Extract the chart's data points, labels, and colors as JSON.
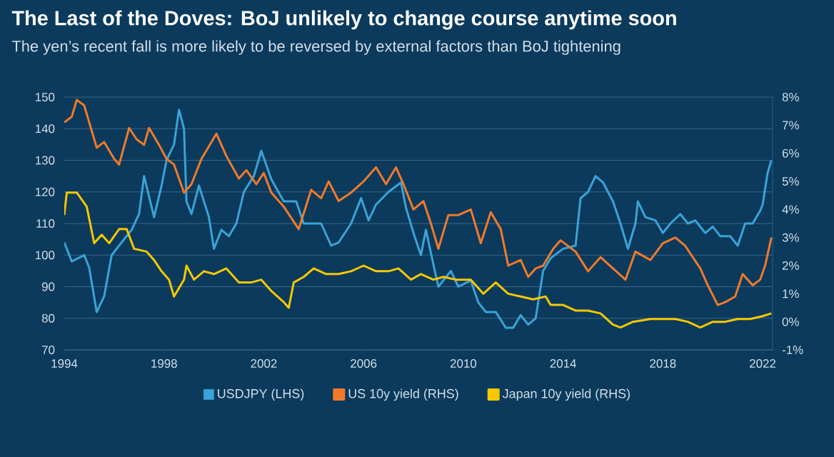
{
  "chart_data": {
    "type": "line",
    "title": "The Last of the Doves: BoJ unlikely to change course anytime soon",
    "subtitle": "The yen’s recent fall is more likely to be reversed by external factors than BoJ tightening",
    "xlim": [
      1994,
      2022.4
    ],
    "xticks": [
      1994,
      1998,
      2002,
      2006,
      2010,
      2014,
      2018,
      2022
    ],
    "ylim": [
      70,
      150
    ],
    "yticks": [
      70,
      80,
      90,
      100,
      110,
      120,
      130,
      140,
      150
    ],
    "y2lim": [
      -1,
      8
    ],
    "y2ticks": [
      {
        "value": -1,
        "label": "-1%"
      },
      {
        "value": 0,
        "label": "0%"
      },
      {
        "value": 1,
        "label": "1%"
      },
      {
        "value": 2,
        "label": "2%"
      },
      {
        "value": 3,
        "label": "3%"
      },
      {
        "value": 4,
        "label": "4%"
      },
      {
        "value": 5,
        "label": "5%"
      },
      {
        "value": 6,
        "label": "6%"
      },
      {
        "value": 7,
        "label": "7%"
      },
      {
        "value": 8,
        "label": "8%"
      }
    ],
    "grid": "y",
    "legend": "bottom",
    "marker": "none",
    "line_style": "solid",
    "series": [
      {
        "name": "USDJPY (LHS)",
        "color": "#3aa3d8",
        "x": [
          1994.0,
          1994.3,
          1994.8,
          1995.0,
          1995.3,
          1995.6,
          1995.9,
          1996.3,
          1996.7,
          1997.0,
          1997.2,
          1997.6,
          1997.9,
          1998.1,
          1998.4,
          1998.6,
          1998.8,
          1998.9,
          1999.1,
          1999.4,
          1999.8,
          2000.0,
          2000.3,
          2000.6,
          2000.9,
          2001.2,
          2001.6,
          2001.9,
          2002.3,
          2002.8,
          2003.3,
          2003.6,
          2004.0,
          2004.3,
          2004.7,
          2005.0,
          2005.5,
          2005.9,
          2006.2,
          2006.5,
          2007.0,
          2007.5,
          2007.7,
          2008.0,
          2008.3,
          2008.5,
          2008.8,
          2009.0,
          2009.5,
          2009.8,
          2010.3,
          2010.6,
          2010.9,
          2011.3,
          2011.7,
          2012.0,
          2012.3,
          2012.6,
          2012.9,
          2013.2,
          2013.5,
          2014.0,
          2014.5,
          2014.7,
          2015.0,
          2015.3,
          2015.6,
          2016.0,
          2016.3,
          2016.6,
          2016.9,
          2017.0,
          2017.3,
          2017.7,
          2018.0,
          2018.3,
          2018.7,
          2019.0,
          2019.3,
          2019.7,
          2020.0,
          2020.3,
          2020.7,
          2021.0,
          2021.3,
          2021.6,
          2021.9,
          2022.0,
          2022.2,
          2022.35
        ],
        "values": [
          104,
          98,
          100,
          96,
          82,
          87,
          100,
          104,
          108,
          113,
          125,
          112,
          122,
          130,
          135,
          146,
          140,
          117,
          113,
          122,
          112,
          102,
          108,
          106,
          110,
          120,
          125,
          133,
          124,
          117,
          117,
          110,
          110,
          110,
          103,
          104,
          110,
          118,
          111,
          116,
          120,
          123,
          115,
          107,
          100,
          108,
          97,
          90,
          95,
          90,
          92,
          85,
          82,
          82,
          77,
          77,
          81,
          78,
          80,
          95,
          99,
          102,
          103,
          118,
          120,
          125,
          123,
          117,
          110,
          102,
          110,
          117,
          112,
          111,
          107,
          110,
          113,
          110,
          111,
          107,
          109,
          106,
          106,
          103,
          110,
          110,
          114,
          116,
          126,
          130
        ]
      },
      {
        "name": "US 10y yield (RHS)",
        "color": "#f07a2b",
        "axis": "y2",
        "x": [
          1994.0,
          1994.3,
          1994.5,
          1994.8,
          1995.0,
          1995.3,
          1995.6,
          1996.0,
          1996.2,
          1996.6,
          1996.9,
          1997.2,
          1997.4,
          1997.8,
          1998.1,
          1998.4,
          1998.8,
          1999.1,
          1999.5,
          1999.9,
          2000.1,
          2000.5,
          2001.0,
          2001.3,
          2001.7,
          2002.0,
          2002.3,
          2002.8,
          2003.4,
          2003.9,
          2004.3,
          2004.6,
          2005.0,
          2005.5,
          2006.0,
          2006.5,
          2006.9,
          2007.3,
          2007.6,
          2008.0,
          2008.4,
          2008.7,
          2009.0,
          2009.4,
          2009.8,
          2010.3,
          2010.7,
          2011.1,
          2011.5,
          2011.8,
          2012.3,
          2012.6,
          2012.9,
          2013.2,
          2013.6,
          2013.9,
          2014.5,
          2015.0,
          2015.5,
          2016.0,
          2016.5,
          2016.9,
          2017.5,
          2018.0,
          2018.5,
          2018.9,
          2019.5,
          2019.8,
          2020.2,
          2020.5,
          2020.9,
          2021.2,
          2021.6,
          2021.9,
          2022.1,
          2022.35
        ],
        "values": [
          7.1,
          7.3,
          7.9,
          7.7,
          7.1,
          6.2,
          6.4,
          5.8,
          5.6,
          6.9,
          6.5,
          6.3,
          6.9,
          6.3,
          5.8,
          5.6,
          4.6,
          4.9,
          5.8,
          6.4,
          6.7,
          5.9,
          5.1,
          5.4,
          4.9,
          5.3,
          4.6,
          4.1,
          3.3,
          4.7,
          4.4,
          5.0,
          4.3,
          4.6,
          5.0,
          5.5,
          4.9,
          5.5,
          4.9,
          4.0,
          4.3,
          3.5,
          2.6,
          3.8,
          3.8,
          4.0,
          2.8,
          3.9,
          3.3,
          2.0,
          2.2,
          1.6,
          1.9,
          2.0,
          2.6,
          2.9,
          2.5,
          1.8,
          2.3,
          1.9,
          1.5,
          2.5,
          2.2,
          2.8,
          3.0,
          2.7,
          1.9,
          1.3,
          0.6,
          0.7,
          0.9,
          1.7,
          1.3,
          1.5,
          2.0,
          3.0
        ]
      },
      {
        "name": "Japan 10y yield (RHS)",
        "color": "#f5c800",
        "axis": "y2",
        "x": [
          1994.0,
          1994.1,
          1994.5,
          1994.9,
          1995.2,
          1995.5,
          1995.8,
          1996.2,
          1996.5,
          1996.8,
          1997.3,
          1997.6,
          1997.9,
          1998.2,
          1998.4,
          1998.8,
          1998.9,
          1999.2,
          1999.6,
          2000.0,
          2000.5,
          2001.0,
          2001.5,
          2001.9,
          2002.3,
          2002.8,
          2003.0,
          2003.2,
          2003.6,
          2004.0,
          2004.5,
          2005.0,
          2005.5,
          2006.0,
          2006.5,
          2007.0,
          2007.4,
          2007.9,
          2008.3,
          2008.8,
          2009.2,
          2009.7,
          2010.3,
          2010.8,
          2011.3,
          2011.8,
          2012.3,
          2012.8,
          2013.3,
          2013.5,
          2014.0,
          2014.5,
          2015.0,
          2015.5,
          2016.0,
          2016.3,
          2016.8,
          2017.5,
          2018.0,
          2018.5,
          2019.0,
          2019.5,
          2020.0,
          2020.5,
          2021.0,
          2021.5,
          2022.0,
          2022.35
        ],
        "values": [
          3.8,
          4.6,
          4.6,
          4.1,
          2.8,
          3.1,
          2.8,
          3.3,
          3.3,
          2.6,
          2.5,
          2.2,
          1.8,
          1.5,
          0.9,
          1.5,
          2.0,
          1.5,
          1.8,
          1.7,
          1.9,
          1.4,
          1.4,
          1.5,
          1.1,
          0.7,
          0.5,
          1.4,
          1.6,
          1.9,
          1.7,
          1.7,
          1.8,
          2.0,
          1.8,
          1.8,
          1.9,
          1.5,
          1.7,
          1.5,
          1.6,
          1.5,
          1.5,
          1.0,
          1.4,
          1.0,
          0.9,
          0.8,
          0.9,
          0.6,
          0.6,
          0.4,
          0.4,
          0.3,
          -0.1,
          -0.2,
          0.0,
          0.1,
          0.1,
          0.1,
          0.0,
          -0.2,
          0.0,
          0.0,
          0.1,
          0.1,
          0.2,
          0.3
        ]
      }
    ]
  }
}
